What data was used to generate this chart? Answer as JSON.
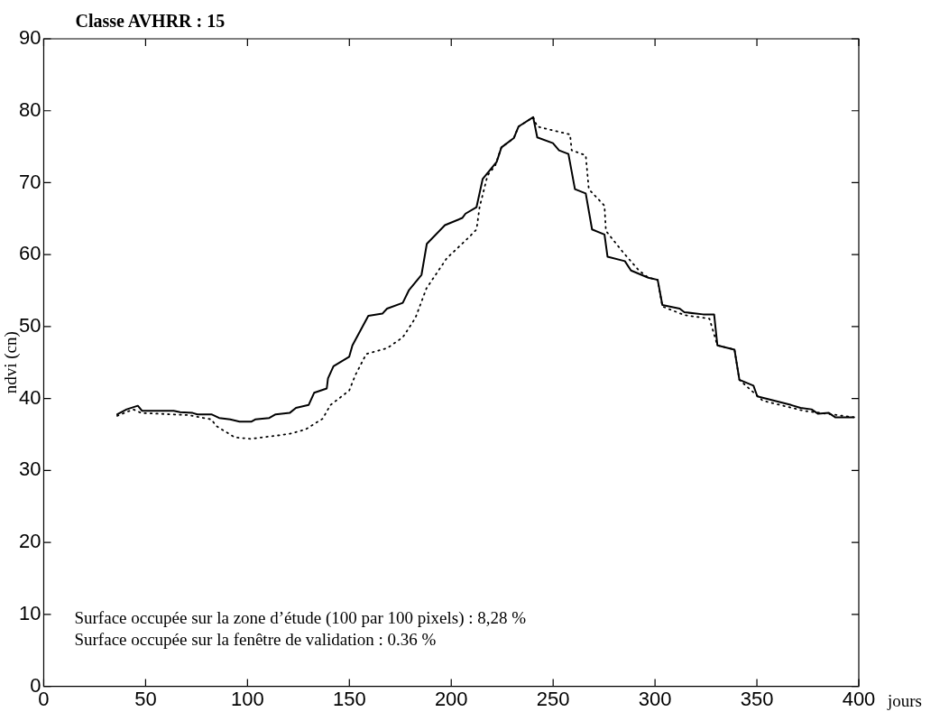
{
  "chart_data": {
    "type": "line",
    "title": "Classe AVHRR : 15",
    "xlabel": "jours",
    "ylabel": "ndvi (cn)",
    "xlim": [
      0,
      400
    ],
    "xticks": [
      0,
      50,
      100,
      150,
      200,
      250,
      300,
      350,
      400
    ],
    "ylim": [
      0,
      90
    ],
    "yticks": [
      0,
      10,
      20,
      30,
      40,
      50,
      60,
      70,
      80,
      90
    ],
    "grid": false,
    "legend": false,
    "marker": "none",
    "annotations": [
      "Surface occupée sur la zone d’étude (100 par 100 pixels) : 8,28 %",
      "Surface occupée sur la fenêtre de validation : 0.36 %"
    ],
    "series": [
      {
        "color": "#000000",
        "line_style": "solid",
        "x": [
          36.1,
          40.7,
          46.2,
          48.2,
          63.8,
          66.9,
          73.1,
          75.4,
          82.3,
          86.1,
          91.5,
          96.1,
          102,
          103.8,
          110.7,
          113.8,
          120.7,
          123.8,
          130,
          132.7,
          138.9,
          139.5,
          142.2,
          149.9,
          151.5,
          159.3,
          166.2,
          168.5,
          176.2,
          179.3,
          185.4,
          188,
          196.9,
          205.4,
          207,
          212.4,
          215.4,
          222.3,
          224.6,
          230.7,
          233,
          240.2,
          242.2,
          249.9,
          252.9,
          257.5,
          260.7,
          266,
          269.1,
          275.2,
          276.7,
          285.2,
          288.2,
          296.7,
          301.3,
          303.6,
          312.1,
          314.4,
          323.6,
          329,
          330.6,
          339,
          341.4,
          348.3,
          350.2,
          366.8,
          371.4,
          376.8,
          379.9,
          385.3,
          388.4,
          397.6
        ],
        "values": [
          37.8,
          38.5,
          39.0,
          38.3,
          38.3,
          38.1,
          38.0,
          37.8,
          37.8,
          37.3,
          37.1,
          36.8,
          36.8,
          37.1,
          37.3,
          37.8,
          38.0,
          38.7,
          39.1,
          40.8,
          41.4,
          42.8,
          44.5,
          45.8,
          47.4,
          51.5,
          51.8,
          52.5,
          53.3,
          55.1,
          57.2,
          61.5,
          64.1,
          65.1,
          65.7,
          66.6,
          70.5,
          72.9,
          74.9,
          76.2,
          77.8,
          79.1,
          76.3,
          75.5,
          74.5,
          74.0,
          69.1,
          68.5,
          63.5,
          62.8,
          59.7,
          59.1,
          57.8,
          56.8,
          56.5,
          53.0,
          52.5,
          52.0,
          51.7,
          51.7,
          47.4,
          46.8,
          42.6,
          41.8,
          40.3,
          39.1,
          38.7,
          38.5,
          37.9,
          38.0,
          37.4,
          37.4
        ]
      },
      {
        "color": "#000000",
        "line_style": "dotted",
        "x": [
          36.1,
          43.9,
          47.8,
          70.9,
          82.3,
          84.6,
          93.8,
          101.5,
          113,
          120.7,
          128.4,
          136.9,
          140.7,
          149.9,
          153,
          158.3,
          168.5,
          176.2,
          182.4,
          187.8,
          197.8,
          208.6,
          212.4,
          213.9,
          217.8,
          221.6,
          224.6,
          230.7,
          233,
          240.2,
          242.2,
          258.3,
          259.1,
          266,
          267.5,
          275.2,
          275.9,
          284.4,
          292.1,
          296.7,
          301.3,
          303.6,
          314.4,
          326.7,
          330.6,
          339,
          341.4,
          352.9,
          373,
          397.6
        ],
        "values": [
          37.6,
          38.5,
          38.0,
          37.7,
          37.1,
          36.2,
          34.6,
          34.4,
          34.8,
          35.1,
          35.7,
          37.2,
          39.1,
          41.1,
          43.3,
          46.2,
          47.0,
          48.5,
          51.2,
          55.3,
          59.5,
          62.4,
          63.5,
          66.6,
          71.0,
          72.4,
          74.9,
          76.2,
          77.8,
          79.1,
          77.8,
          76.7,
          74.5,
          73.8,
          69.1,
          66.8,
          63.3,
          60.3,
          57.8,
          56.8,
          56.5,
          52.8,
          51.6,
          51.1,
          47.4,
          46.8,
          42.6,
          39.7,
          38.3,
          37.4
        ]
      }
    ]
  }
}
